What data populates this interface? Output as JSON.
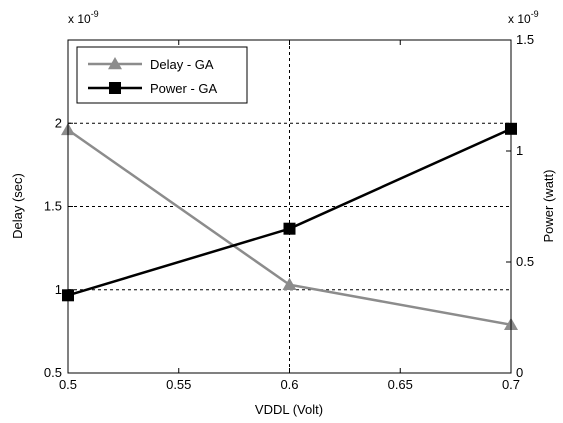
{
  "chart_data": {
    "type": "line",
    "xlabel": "VDDL (Volt)",
    "ylabel_left": "Delay (sec)",
    "ylabel_right": "Power (watt)",
    "left_exponent": {
      "base": "x 10",
      "power": "-9"
    },
    "right_exponent": {
      "base": "x 10",
      "power": "-9"
    },
    "x": [
      0.5,
      0.6,
      0.7
    ],
    "xlim": [
      0.5,
      0.7
    ],
    "x_ticks": [
      0.5,
      0.55,
      0.6,
      0.65,
      0.7
    ],
    "x_tick_labels": [
      "0.5",
      "0.55",
      "0.6",
      "0.65",
      "0.7"
    ],
    "ylim_left": [
      0.5,
      2.5
    ],
    "y_ticks_left": [
      0.5,
      1,
      1.5,
      2
    ],
    "y_tick_labels_left": [
      "0.5",
      "1",
      "1.5",
      "2"
    ],
    "ylim_right": [
      0,
      1.5
    ],
    "y_ticks_right": [
      0,
      0.5,
      1,
      1.5
    ],
    "y_tick_labels_right": [
      "0",
      "0.5",
      "1",
      "1.5"
    ],
    "grid": "dashed, at x = 0.6 and y = 1, 1.5, 2",
    "legend_position": "top-left",
    "series": [
      {
        "name": "Delay - GA",
        "axis": "left",
        "marker": "triangle",
        "color": "#8c8c8c",
        "values": [
          1.96,
          1.03,
          0.79
        ]
      },
      {
        "name": "Power - GA",
        "axis": "right",
        "marker": "square",
        "color": "#000000",
        "values": [
          0.35,
          0.65,
          1.1
        ]
      }
    ]
  }
}
